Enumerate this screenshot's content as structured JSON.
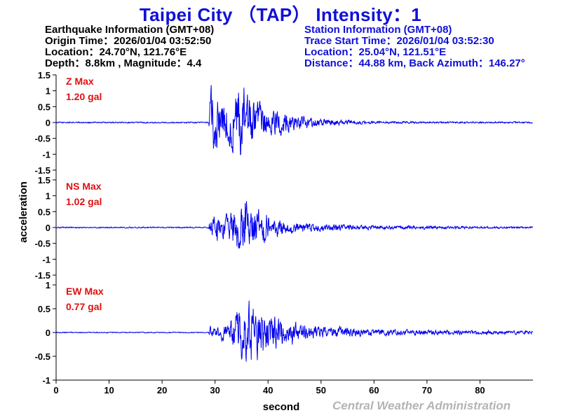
{
  "header": {
    "title": "Taipei City （TAP） Intensity：1"
  },
  "earthquake": {
    "heading": "Earthquake Information  (GMT+08)",
    "origin_time": "Origin Time：2026/01/04 03:52:50",
    "location": "Location：24.70°N, 121.76°E",
    "depth_magnitude": "Depth：8.8km , Magnitude：4.4"
  },
  "station": {
    "heading": "Station Information  (GMT+08)",
    "trace_start": "Trace Start Time：2026/01/04 03:52:30",
    "location": "Location：25.04°N, 121.51°E",
    "distance_azimuth": "Distance：44.88 km, Back Azimuth：146.27°"
  },
  "colors": {
    "title": "#1010d8",
    "trace": "#0000ee",
    "max_label": "#e01010",
    "axis": "#000000",
    "agency": "#b4b4b4"
  },
  "chart_data": {
    "type": "line",
    "xlabel": "second",
    "ylabel": "acceleration",
    "xlim": [
      0,
      90
    ],
    "x_ticks": [
      0,
      10,
      20,
      30,
      40,
      50,
      60,
      70,
      80
    ],
    "p_arrival_s": 29,
    "series": [
      {
        "name": "Z",
        "max_title": "Z Max",
        "max_value": "1.20 gal",
        "ylim": [
          -1.5,
          1.5
        ],
        "y_ticks": [
          -1.5,
          -1,
          -0.5,
          0,
          0.5,
          1,
          1.5
        ],
        "envelope": [
          [
            0,
            0.02
          ],
          [
            28.8,
            0.02
          ],
          [
            29.0,
            0.9
          ],
          [
            29.5,
            1.1
          ],
          [
            31,
            0.75
          ],
          [
            33,
            0.8
          ],
          [
            35,
            1.15
          ],
          [
            36,
            0.9
          ],
          [
            38,
            0.6
          ],
          [
            41,
            0.42
          ],
          [
            45,
            0.25
          ],
          [
            50,
            0.12
          ],
          [
            55,
            0.07
          ],
          [
            60,
            0.04
          ],
          [
            70,
            0.03
          ],
          [
            90,
            0.025
          ]
        ]
      },
      {
        "name": "NS",
        "max_title": "NS Max",
        "max_value": "1.02 gal",
        "ylim": [
          -1.5,
          1.5
        ],
        "y_ticks": [
          -1.5,
          -1,
          -0.5,
          0,
          0.5,
          1,
          1.5
        ],
        "envelope": [
          [
            0,
            0.02
          ],
          [
            28.8,
            0.02
          ],
          [
            29.0,
            0.3
          ],
          [
            30,
            0.38
          ],
          [
            32,
            0.35
          ],
          [
            33.5,
            0.6
          ],
          [
            35,
            0.9
          ],
          [
            36.5,
            0.95
          ],
          [
            38,
            0.55
          ],
          [
            40,
            0.35
          ],
          [
            43,
            0.25
          ],
          [
            46,
            0.15
          ],
          [
            50,
            0.12
          ],
          [
            55,
            0.09
          ],
          [
            60,
            0.06
          ],
          [
            70,
            0.05
          ],
          [
            80,
            0.035
          ],
          [
            90,
            0.03
          ]
        ]
      },
      {
        "name": "EW",
        "max_title": "EW Max",
        "max_value": "0.77 gal",
        "ylim": [
          -1,
          1
        ],
        "y_ticks": [
          -1,
          -0.5,
          0,
          0.5,
          1
        ],
        "envelope": [
          [
            0,
            0.01
          ],
          [
            28.8,
            0.01
          ],
          [
            29.0,
            0.15
          ],
          [
            30,
            0.12
          ],
          [
            32,
            0.16
          ],
          [
            34,
            0.4
          ],
          [
            35.5,
            0.6
          ],
          [
            37,
            0.72
          ],
          [
            38.5,
            0.55
          ],
          [
            40,
            0.38
          ],
          [
            43,
            0.28
          ],
          [
            46,
            0.18
          ],
          [
            50,
            0.12
          ],
          [
            55,
            0.09
          ],
          [
            60,
            0.07
          ],
          [
            70,
            0.05
          ],
          [
            80,
            0.04
          ],
          [
            90,
            0.035
          ]
        ]
      }
    ]
  },
  "footer": {
    "agency": "Central Weather Administration"
  }
}
